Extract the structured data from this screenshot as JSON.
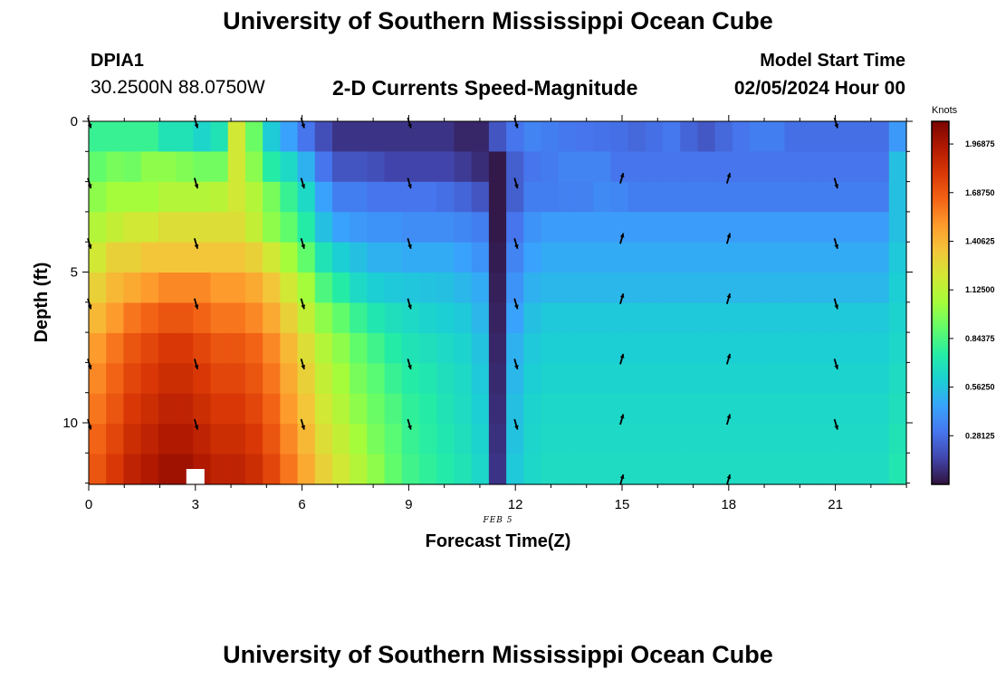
{
  "header": {
    "title": "University of Southern Mississippi Ocean Cube",
    "station_id": "DPIA1",
    "coordinates": "30.2500N  88.0750W",
    "subtitle": "2-D Currents Speed-Magnitude",
    "model_start_label": "Model Start Time",
    "model_start_value": "02/05/2024 Hour 00"
  },
  "footer": {
    "title": "University of Southern Mississippi Ocean Cube"
  },
  "colors": {
    "palette": [
      "#30123b",
      "#4145ab",
      "#4675ed",
      "#39a2fc",
      "#1bcfd4",
      "#24eca6",
      "#61fc6c",
      "#a4fc3b",
      "#d1e834",
      "#f3c63a",
      "#fe9b2d",
      "#f36315",
      "#d93806",
      "#b11901",
      "#7a0403"
    ]
  },
  "chart_data": {
    "type": "heatmap",
    "xlabel": "Forecast Time(Z)",
    "ylabel": "Depth (ft)",
    "date_label": "FEB 5",
    "colorbar_label": "Knots",
    "colorbar_ticks": [
      "1.96875",
      "1.68750",
      "1.40625",
      "1.12500",
      "0.84375",
      "0.56250",
      "0.28125"
    ],
    "colorbar_tick_values": [
      1.96875,
      1.6875,
      1.40625,
      1.125,
      0.84375,
      0.5625,
      0.28125
    ],
    "value_range": [
      0,
      2.1
    ],
    "x_range": [
      0,
      23
    ],
    "y_range": [
      0,
      12
    ],
    "x_ticks": [
      0,
      3,
      6,
      9,
      12,
      15,
      18,
      21
    ],
    "y_ticks": [
      0,
      5,
      10
    ],
    "depths": [
      0,
      1,
      2,
      3,
      4,
      5,
      6,
      7,
      8,
      9,
      10,
      11
    ],
    "hours": [
      0,
      1,
      2,
      3,
      4,
      5,
      6,
      7,
      8,
      9,
      10,
      11,
      12,
      13,
      14,
      15,
      16,
      17,
      18,
      19,
      20,
      21,
      22,
      23
    ],
    "speed": [
      [
        0.8,
        0.8,
        0.8,
        0.8,
        0.7,
        0.7,
        0.63,
        0.7,
        1.2,
        0.92,
        0.59,
        0.45,
        0.3,
        0.18,
        0.1,
        0.1,
        0.1,
        0.1,
        0.1,
        0.1,
        0.1,
        0.06,
        0.06,
        0.2,
        0.3,
        0.35,
        0.33,
        0.31,
        0.3,
        0.29,
        0.28,
        0.26,
        0.28,
        0.31,
        0.25,
        0.21,
        0.26,
        0.3,
        0.33,
        0.33,
        0.28,
        0.28,
        0.28,
        0.28,
        0.28,
        0.28,
        0.42
      ],
      [
        0.9,
        0.95,
        0.93,
        1.0,
        1.0,
        0.97,
        0.94,
        0.94,
        1.2,
        0.99,
        0.75,
        0.65,
        0.5,
        0.3,
        0.2,
        0.2,
        0.18,
        0.15,
        0.15,
        0.15,
        0.15,
        0.12,
        0.08,
        0.02,
        0.23,
        0.3,
        0.32,
        0.35,
        0.35,
        0.35,
        0.3,
        0.3,
        0.3,
        0.3,
        0.3,
        0.3,
        0.3,
        0.3,
        0.3,
        0.3,
        0.3,
        0.3,
        0.3,
        0.3,
        0.3,
        0.3,
        0.55
      ],
      [
        1.0,
        1.05,
        1.05,
        1.05,
        1.1,
        1.1,
        1.1,
        1.12,
        1.2,
        1.1,
        0.95,
        0.8,
        0.65,
        0.45,
        0.33,
        0.33,
        0.3,
        0.3,
        0.3,
        0.3,
        0.28,
        0.25,
        0.2,
        0.02,
        0.23,
        0.33,
        0.33,
        0.34,
        0.34,
        0.37,
        0.36,
        0.33,
        0.33,
        0.33,
        0.33,
        0.33,
        0.33,
        0.33,
        0.33,
        0.33,
        0.33,
        0.33,
        0.33,
        0.33,
        0.33,
        0.33,
        0.55
      ],
      [
        1.1,
        1.15,
        1.2,
        1.2,
        1.25,
        1.25,
        1.25,
        1.25,
        1.25,
        1.15,
        1.0,
        0.9,
        0.75,
        0.55,
        0.45,
        0.42,
        0.4,
        0.4,
        0.38,
        0.38,
        0.38,
        0.36,
        0.33,
        0.02,
        0.3,
        0.4,
        0.43,
        0.43,
        0.43,
        0.43,
        0.43,
        0.43,
        0.43,
        0.43,
        0.43,
        0.43,
        0.43,
        0.43,
        0.43,
        0.43,
        0.43,
        0.43,
        0.43,
        0.43,
        0.43,
        0.43,
        0.55
      ],
      [
        1.2,
        1.3,
        1.3,
        1.35,
        1.35,
        1.35,
        1.35,
        1.35,
        1.35,
        1.3,
        1.2,
        1.05,
        0.9,
        0.7,
        0.6,
        0.55,
        0.5,
        0.5,
        0.48,
        0.48,
        0.48,
        0.45,
        0.4,
        0.03,
        0.35,
        0.45,
        0.48,
        0.48,
        0.48,
        0.48,
        0.48,
        0.48,
        0.48,
        0.48,
        0.48,
        0.48,
        0.48,
        0.48,
        0.48,
        0.48,
        0.48,
        0.48,
        0.48,
        0.48,
        0.48,
        0.48,
        0.58
      ],
      [
        1.3,
        1.4,
        1.45,
        1.5,
        1.55,
        1.55,
        1.55,
        1.5,
        1.5,
        1.45,
        1.35,
        1.2,
        1.05,
        0.85,
        0.75,
        0.65,
        0.6,
        0.58,
        0.57,
        0.56,
        0.55,
        0.52,
        0.48,
        0.04,
        0.4,
        0.5,
        0.52,
        0.52,
        0.52,
        0.52,
        0.52,
        0.52,
        0.52,
        0.52,
        0.52,
        0.52,
        0.52,
        0.52,
        0.52,
        0.52,
        0.52,
        0.52,
        0.52,
        0.52,
        0.52,
        0.52,
        0.6
      ],
      [
        1.4,
        1.5,
        1.6,
        1.65,
        1.7,
        1.7,
        1.65,
        1.6,
        1.6,
        1.55,
        1.45,
        1.3,
        1.15,
        1.0,
        0.9,
        0.8,
        0.72,
        0.68,
        0.65,
        0.62,
        0.6,
        0.58,
        0.52,
        0.05,
        0.45,
        0.55,
        0.58,
        0.58,
        0.58,
        0.58,
        0.58,
        0.58,
        0.58,
        0.58,
        0.58,
        0.58,
        0.58,
        0.58,
        0.58,
        0.58,
        0.58,
        0.58,
        0.58,
        0.58,
        0.58,
        0.58,
        0.62
      ],
      [
        1.5,
        1.6,
        1.7,
        1.75,
        1.8,
        1.8,
        1.75,
        1.7,
        1.7,
        1.65,
        1.55,
        1.4,
        1.25,
        1.1,
        1.0,
        0.9,
        0.82,
        0.75,
        0.7,
        0.68,
        0.65,
        0.62,
        0.56,
        0.06,
        0.5,
        0.58,
        0.6,
        0.6,
        0.6,
        0.6,
        0.6,
        0.6,
        0.6,
        0.6,
        0.6,
        0.6,
        0.6,
        0.6,
        0.6,
        0.6,
        0.6,
        0.6,
        0.6,
        0.6,
        0.6,
        0.6,
        0.64
      ],
      [
        1.55,
        1.65,
        1.75,
        1.8,
        1.85,
        1.85,
        1.8,
        1.75,
        1.75,
        1.7,
        1.6,
        1.45,
        1.3,
        1.15,
        1.05,
        0.95,
        0.88,
        0.8,
        0.75,
        0.72,
        0.68,
        0.65,
        0.58,
        0.07,
        0.52,
        0.6,
        0.62,
        0.62,
        0.62,
        0.62,
        0.62,
        0.62,
        0.62,
        0.62,
        0.62,
        0.62,
        0.62,
        0.62,
        0.62,
        0.62,
        0.62,
        0.62,
        0.62,
        0.62,
        0.62,
        0.62,
        0.66
      ],
      [
        1.6,
        1.7,
        1.8,
        1.85,
        1.9,
        1.9,
        1.85,
        1.8,
        1.8,
        1.75,
        1.65,
        1.5,
        1.35,
        1.2,
        1.1,
        1.0,
        0.92,
        0.85,
        0.78,
        0.75,
        0.7,
        0.66,
        0.6,
        0.08,
        0.55,
        0.62,
        0.64,
        0.64,
        0.64,
        0.64,
        0.64,
        0.64,
        0.64,
        0.64,
        0.64,
        0.64,
        0.64,
        0.64,
        0.64,
        0.64,
        0.64,
        0.64,
        0.64,
        0.64,
        0.64,
        0.64,
        0.68
      ],
      [
        1.65,
        1.75,
        1.85,
        1.9,
        1.95,
        1.95,
        1.9,
        1.85,
        1.85,
        1.8,
        1.7,
        1.55,
        1.4,
        1.25,
        1.15,
        1.05,
        0.95,
        0.88,
        0.8,
        0.76,
        0.72,
        0.68,
        0.62,
        0.09,
        0.56,
        0.63,
        0.65,
        0.65,
        0.65,
        0.65,
        0.65,
        0.65,
        0.65,
        0.65,
        0.65,
        0.65,
        0.65,
        0.65,
        0.65,
        0.65,
        0.65,
        0.65,
        0.65,
        0.65,
        0.65,
        0.65,
        0.7
      ],
      [
        1.7,
        1.8,
        1.9,
        1.95,
        2.0,
        2.0,
        1.95,
        1.9,
        1.9,
        1.85,
        1.75,
        1.6,
        1.45,
        1.3,
        1.2,
        1.1,
        1.0,
        0.9,
        0.82,
        0.78,
        0.74,
        0.7,
        0.64,
        0.1,
        0.58,
        0.64,
        0.66,
        0.66,
        0.66,
        0.66,
        0.66,
        0.66,
        0.66,
        0.66,
        0.66,
        0.66,
        0.66,
        0.66,
        0.66,
        0.66,
        0.66,
        0.66,
        0.66,
        0.66,
        0.66,
        0.66,
        0.72
      ]
    ],
    "vectors": {
      "hours": [
        0,
        3,
        6,
        9,
        12,
        15,
        18,
        21
      ],
      "depths": [
        0,
        2,
        4,
        6,
        8,
        10,
        12
      ],
      "down_hours": [
        0,
        3,
        6,
        9,
        12,
        21
      ],
      "up_hours": [
        15,
        18
      ]
    },
    "missing_cell": {
      "hour": 3,
      "depth": 12
    }
  }
}
